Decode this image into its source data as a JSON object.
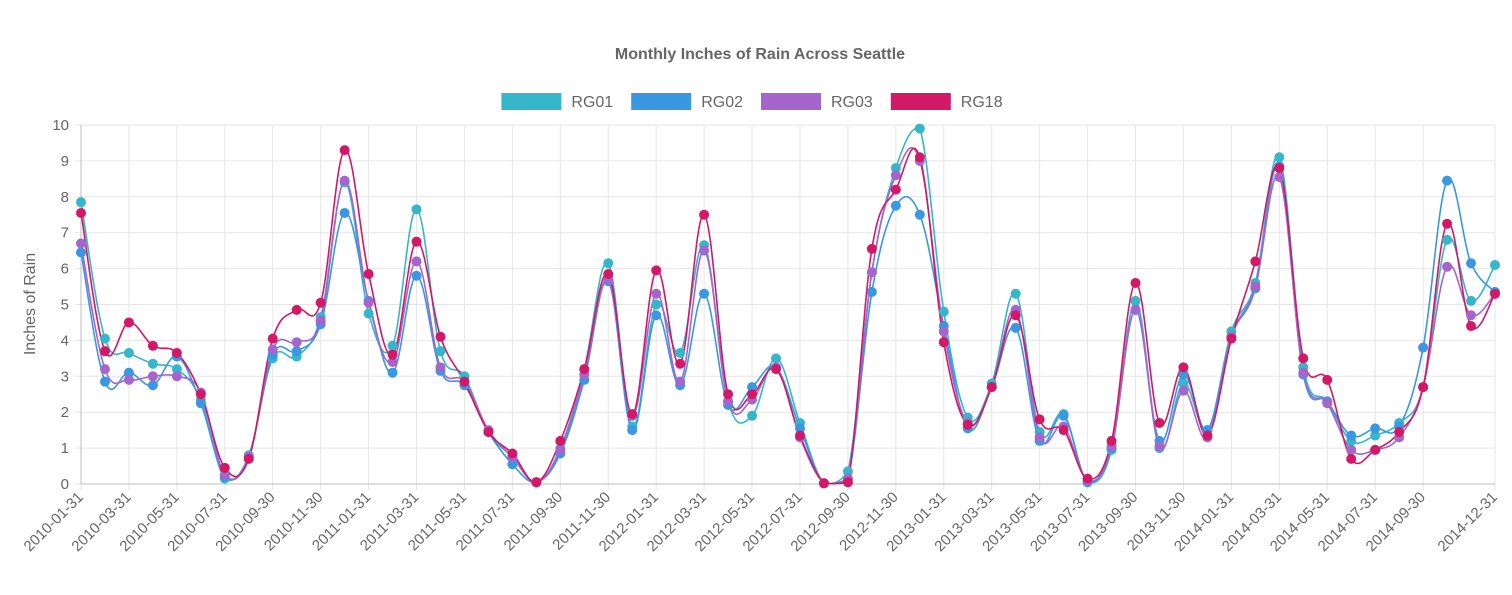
{
  "chart_data": {
    "type": "line",
    "title": "Monthly Inches of Rain Across Seattle",
    "ylabel": "Inches of Rain",
    "xlabel": "",
    "ylim": [
      0,
      10
    ],
    "yticks": [
      0,
      1,
      2,
      3,
      4,
      5,
      6,
      7,
      8,
      9,
      10
    ],
    "grid": true,
    "legend_position": "top",
    "x": [
      "2010-01-31",
      "2010-02-28",
      "2010-03-31",
      "2010-04-30",
      "2010-05-31",
      "2010-06-30",
      "2010-07-31",
      "2010-08-31",
      "2010-09-30",
      "2010-10-31",
      "2010-11-30",
      "2010-12-31",
      "2011-01-31",
      "2011-02-28",
      "2011-03-31",
      "2011-04-30",
      "2011-05-31",
      "2011-06-30",
      "2011-07-31",
      "2011-08-31",
      "2011-09-30",
      "2011-10-31",
      "2011-11-30",
      "2011-12-31",
      "2012-01-31",
      "2012-02-29",
      "2012-03-31",
      "2012-04-30",
      "2012-05-31",
      "2012-06-30",
      "2012-07-31",
      "2012-08-31",
      "2012-09-30",
      "2012-10-31",
      "2012-11-30",
      "2012-12-31",
      "2013-01-31",
      "2013-02-28",
      "2013-03-31",
      "2013-04-30",
      "2013-05-31",
      "2013-06-30",
      "2013-07-31",
      "2013-08-31",
      "2013-09-30",
      "2013-10-31",
      "2013-11-30",
      "2013-12-31",
      "2014-01-31",
      "2014-02-28",
      "2014-03-31",
      "2014-04-30",
      "2014-05-31",
      "2014-06-30",
      "2014-07-31",
      "2014-08-31",
      "2014-09-30",
      "2014-10-31",
      "2014-11-30",
      "2014-12-31"
    ],
    "x_tick_labels": [
      "2010-01-31",
      "2010-03-31",
      "2010-05-31",
      "2010-07-31",
      "2010-09-30",
      "2010-11-30",
      "2011-01-31",
      "2011-03-31",
      "2011-05-31",
      "2011-07-31",
      "2011-09-30",
      "2011-11-30",
      "2012-01-31",
      "2012-03-31",
      "2012-05-31",
      "2012-07-31",
      "2012-09-30",
      "2012-11-30",
      "2013-01-31",
      "2013-03-31",
      "2013-05-31",
      "2013-07-31",
      "2013-09-30",
      "2013-11-30",
      "2014-01-31",
      "2014-03-31",
      "2014-05-31",
      "2014-07-31",
      "2014-09-30",
      "2014-12-31"
    ],
    "series": [
      {
        "name": "RG01",
        "color": "#36b6c9",
        "values": [
          7.85,
          4.05,
          3.65,
          3.35,
          3.2,
          2.35,
          0.15,
          0.8,
          3.5,
          3.55,
          4.65,
          8.4,
          4.75,
          3.85,
          7.65,
          3.7,
          3.0,
          1.45,
          0.75,
          0.05,
          1.0,
          3.2,
          6.15,
          1.6,
          5.0,
          3.65,
          6.65,
          2.3,
          1.9,
          3.5,
          1.7,
          0.02,
          0.35,
          5.9,
          8.8,
          9.9,
          4.8,
          1.85,
          2.8,
          5.3,
          1.45,
          1.95,
          0.05,
          0.95,
          5.1,
          1.0,
          2.8,
          1.5,
          4.25,
          5.6,
          9.1,
          3.25,
          2.3,
          1.2,
          1.35,
          1.7,
          2.7,
          6.8,
          5.1,
          6.1
        ]
      },
      {
        "name": "RG02",
        "color": "#3a97e2",
        "values": [
          6.45,
          2.85,
          3.1,
          2.75,
          3.55,
          2.25,
          0.2,
          0.75,
          3.6,
          3.7,
          4.45,
          7.55,
          5.1,
          3.1,
          5.8,
          3.15,
          2.75,
          1.45,
          0.55,
          0.05,
          0.85,
          2.9,
          5.65,
          1.5,
          4.7,
          2.75,
          5.3,
          2.2,
          2.7,
          3.25,
          1.55,
          0.02,
          0.15,
          5.35,
          7.75,
          7.5,
          4.4,
          1.55,
          2.7,
          4.35,
          1.2,
          1.9,
          0.05,
          1.0,
          4.85,
          1.2,
          3.05,
          1.5,
          4.1,
          5.45,
          8.85,
          3.05,
          2.3,
          1.35,
          1.55,
          1.6,
          3.8,
          8.45,
          6.15,
          5.35
        ]
      },
      {
        "name": "RG03",
        "color": "#a565cc",
        "values": [
          6.7,
          3.2,
          2.9,
          3.0,
          3.0,
          2.55,
          0.25,
          0.75,
          3.75,
          3.95,
          4.55,
          8.45,
          5.05,
          3.4,
          6.2,
          3.25,
          2.85,
          1.5,
          0.75,
          0.05,
          0.95,
          3.05,
          5.7,
          1.9,
          5.3,
          2.85,
          6.5,
          2.3,
          2.35,
          3.25,
          1.3,
          0.02,
          0.15,
          5.9,
          8.6,
          9.0,
          4.25,
          1.7,
          2.7,
          4.85,
          1.3,
          1.6,
          0.1,
          1.05,
          4.85,
          1.05,
          2.6,
          1.3,
          4.1,
          5.5,
          8.55,
          3.1,
          2.25,
          0.95,
          0.95,
          1.3,
          2.7,
          6.05,
          4.7,
          5.3
        ]
      },
      {
        "name": "RG18",
        "color": "#d21866",
        "values": [
          7.55,
          3.7,
          4.5,
          3.85,
          3.65,
          2.5,
          0.45,
          0.7,
          4.05,
          4.85,
          5.05,
          9.3,
          5.85,
          3.6,
          6.75,
          4.1,
          2.85,
          1.45,
          0.85,
          0.05,
          1.2,
          3.2,
          5.85,
          1.95,
          5.95,
          3.35,
          7.5,
          2.5,
          2.5,
          3.2,
          1.35,
          0.02,
          0.05,
          6.55,
          8.2,
          9.1,
          3.95,
          1.65,
          2.7,
          4.7,
          1.8,
          1.5,
          0.15,
          1.2,
          5.6,
          1.7,
          3.25,
          1.35,
          4.05,
          6.2,
          8.8,
          3.5,
          2.9,
          0.7,
          0.95,
          1.45,
          2.7,
          7.25,
          4.4,
          5.3
        ]
      }
    ]
  }
}
